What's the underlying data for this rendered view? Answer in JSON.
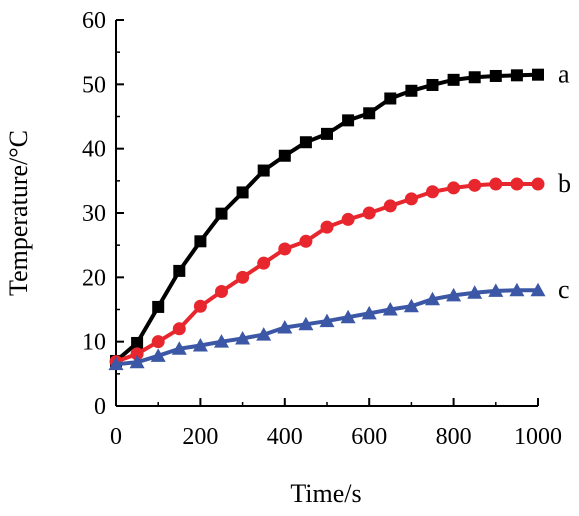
{
  "chart_data": {
    "type": "line",
    "title": "",
    "xlabel": "Time/s",
    "ylabel": "Temperature/°C",
    "xlim": [
      0,
      1000
    ],
    "ylim": [
      0,
      60
    ],
    "xticks": [
      0,
      200,
      400,
      600,
      800,
      1000
    ],
    "yticks": [
      0,
      10,
      20,
      30,
      40,
      50,
      60
    ],
    "grid": false,
    "x": [
      0,
      50,
      100,
      150,
      200,
      250,
      300,
      350,
      400,
      450,
      500,
      550,
      600,
      650,
      700,
      750,
      800,
      850,
      900,
      950,
      1000
    ],
    "series": [
      {
        "label": "a",
        "color": "#000000",
        "marker": "square",
        "values": [
          7.0,
          9.8,
          15.4,
          21.0,
          25.6,
          29.9,
          33.2,
          36.6,
          38.9,
          41.0,
          42.3,
          44.4,
          45.5,
          47.8,
          49.0,
          49.9,
          50.7,
          51.1,
          51.3,
          51.4,
          51.5
        ]
      },
      {
        "label": "b",
        "color": "#e8262d",
        "marker": "circle",
        "values": [
          6.9,
          8.1,
          10.0,
          12.0,
          15.5,
          17.8,
          20.0,
          22.2,
          24.4,
          25.6,
          27.8,
          29.0,
          30.0,
          31.1,
          32.2,
          33.3,
          33.9,
          34.3,
          34.5,
          34.5,
          34.5
        ]
      },
      {
        "label": "c",
        "color": "#3b57a5",
        "marker": "triangle",
        "values": [
          6.5,
          6.8,
          7.8,
          8.9,
          9.4,
          10.0,
          10.5,
          11.1,
          12.2,
          12.7,
          13.2,
          13.8,
          14.4,
          15.0,
          15.5,
          16.6,
          17.2,
          17.6,
          17.9,
          18.0,
          18.0
        ]
      }
    ]
  }
}
